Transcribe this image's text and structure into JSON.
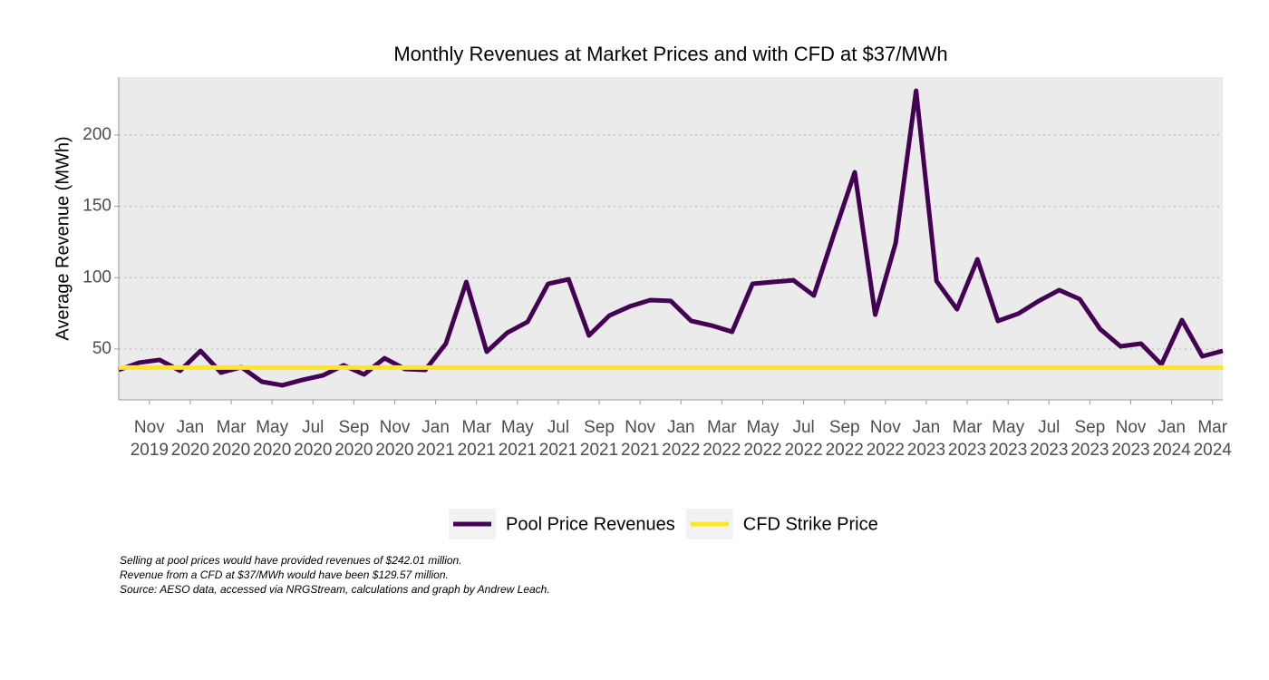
{
  "chart_data": {
    "type": "line",
    "title": "Monthly Revenues at Market Prices and with CFD at $37/MWh",
    "y_label": "Average Revenue (MWh)",
    "x": [
      "2019-09",
      "2019-10",
      "2019-11",
      "2019-12",
      "2020-01",
      "2020-02",
      "2020-03",
      "2020-04",
      "2020-05",
      "2020-06",
      "2020-07",
      "2020-08",
      "2020-09",
      "2020-10",
      "2020-11",
      "2020-12",
      "2021-01",
      "2021-02",
      "2021-03",
      "2021-04",
      "2021-05",
      "2021-06",
      "2021-07",
      "2021-08",
      "2021-09",
      "2021-10",
      "2021-11",
      "2021-12",
      "2022-01",
      "2022-02",
      "2022-03",
      "2022-04",
      "2022-05",
      "2022-06",
      "2022-07",
      "2022-08",
      "2022-09",
      "2022-10",
      "2022-11",
      "2022-12",
      "2023-01",
      "2023-02",
      "2023-03",
      "2023-04",
      "2023-05",
      "2023-06",
      "2023-07",
      "2023-08",
      "2023-09",
      "2023-10",
      "2023-11",
      "2023-12",
      "2024-01",
      "2024-02",
      "2024-03"
    ],
    "series": [
      {
        "name": "Pool Price Revenues",
        "color": "#440154",
        "values": [
          35.4,
          40.5,
          42.4,
          34.8,
          48.7,
          33.5,
          37.3,
          27.1,
          24.6,
          28.4,
          31.6,
          38.6,
          32.2,
          43.6,
          36,
          35.4,
          53.8,
          97,
          48.1,
          61.4,
          69.1,
          95.7,
          98.9,
          59.5,
          73.5,
          79.9,
          84.3,
          83.7,
          69.7,
          66.5,
          62.1,
          95.7,
          97,
          98.2,
          87.5,
          131.3,
          173.9,
          74.1,
          124.3,
          231,
          97.6,
          77.9,
          112.9,
          69.7,
          74.8,
          83.7,
          91.3,
          85,
          64,
          51.9,
          53.8,
          39.2,
          70.3,
          44.9,
          48.7
        ]
      }
    ],
    "reference_line": {
      "name": "CFD Strike Price",
      "value": 37,
      "color": "#FDE725"
    },
    "xlim": [
      "2019-09",
      "2024-03"
    ],
    "xticks": [
      {
        "value": "2019-11",
        "label": "Nov\n2019"
      },
      {
        "value": "2020-01",
        "label": "Jan\n2020"
      },
      {
        "value": "2020-03",
        "label": "Mar\n2020"
      },
      {
        "value": "2020-05",
        "label": "May\n2020"
      },
      {
        "value": "2020-07",
        "label": "Jul\n2020"
      },
      {
        "value": "2020-09",
        "label": "Sep\n2020"
      },
      {
        "value": "2020-11",
        "label": "Nov\n2020"
      },
      {
        "value": "2021-01",
        "label": "Jan\n2021"
      },
      {
        "value": "2021-03",
        "label": "Mar\n2021"
      },
      {
        "value": "2021-05",
        "label": "May\n2021"
      },
      {
        "value": "2021-07",
        "label": "Jul\n2021"
      },
      {
        "value": "2021-09",
        "label": "Sep\n2021"
      },
      {
        "value": "2021-11",
        "label": "Nov\n2021"
      },
      {
        "value": "2022-01",
        "label": "Jan\n2022"
      },
      {
        "value": "2022-03",
        "label": "Mar\n2022"
      },
      {
        "value": "2022-05",
        "label": "May\n2022"
      },
      {
        "value": "2022-07",
        "label": "Jul\n2022"
      },
      {
        "value": "2022-09",
        "label": "Sep\n2022"
      },
      {
        "value": "2022-11",
        "label": "Nov\n2022"
      },
      {
        "value": "2023-01",
        "label": "Jan\n2023"
      },
      {
        "value": "2023-03",
        "label": "Mar\n2023"
      },
      {
        "value": "2023-05",
        "label": "May\n2023"
      },
      {
        "value": "2023-07",
        "label": "Jul\n2023"
      },
      {
        "value": "2023-09",
        "label": "Sep\n2023"
      },
      {
        "value": "2023-11",
        "label": "Nov\n2023"
      },
      {
        "value": "2024-01",
        "label": "Jan\n2024"
      },
      {
        "value": "2024-03",
        "label": "Mar\n2024"
      }
    ],
    "ylim": [
      14.4,
      240.6
    ],
    "yticks": [
      50,
      100,
      150,
      200
    ],
    "grid": true,
    "legend": "bottom",
    "notes": [
      "Selling at pool prices would have provided revenues of $242.01 million.",
      "Revenue from a CFD at $37/MWh would have been $129.57 million.",
      "Source: AESO data, accessed via NRGStream, calculations and graph by Andrew Leach."
    ]
  }
}
